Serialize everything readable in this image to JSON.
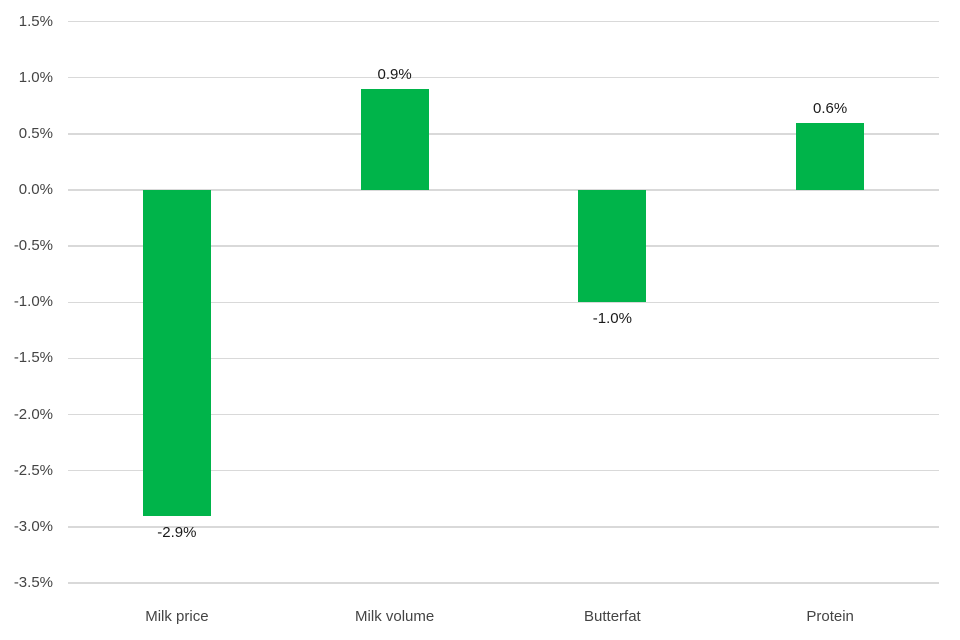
{
  "chart_data": {
    "type": "bar",
    "title": "",
    "xlabel": "",
    "ylabel": "",
    "categories": [
      "Milk price",
      "Milk volume",
      "Butterfat",
      "Protein"
    ],
    "values": [
      -2.9,
      0.9,
      -1.0,
      0.6
    ],
    "data_labels": [
      "-2.9%",
      "0.9%",
      "-1.0%",
      "0.6%"
    ],
    "ylim": [
      -3.5,
      1.5
    ],
    "ytick_step": 0.5,
    "ytick_labels": [
      "1.5%",
      "1.0%",
      "0.5%",
      "0.0%",
      "-0.5%",
      "-1.0%",
      "-1.5%",
      "-2.0%",
      "-2.5%",
      "-3.0%",
      "-3.5%"
    ],
    "grid": "horizontal-only",
    "legend": "none",
    "colors": {
      "bar": "#00B44A",
      "gridline": "#D9D9D9",
      "axis_text": "#444444",
      "data_label_text": "#1A1A1A",
      "background": "#FFFFFF"
    }
  }
}
